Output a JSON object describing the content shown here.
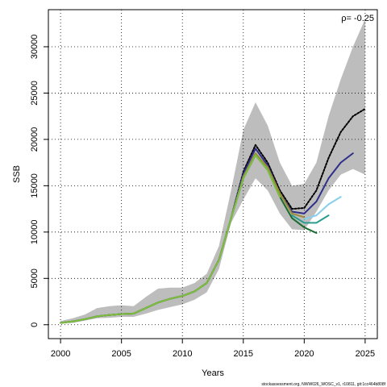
{
  "chart_data": {
    "type": "line",
    "title": "",
    "xlabel": "Years",
    "ylabel": "SSB",
    "xlim": [
      1999,
      2026
    ],
    "ylim": [
      -1500,
      34000
    ],
    "xticks": [
      2000,
      2005,
      2010,
      2015,
      2020,
      2025
    ],
    "yticks": [
      0,
      5000,
      10000,
      15000,
      20000,
      25000,
      30000
    ],
    "grid": true,
    "annotation": "ρ= -0.25",
    "footer": "stockassessment.org, NWW026_WOSC_v1, r10811, git:1cc464b808f",
    "band": {
      "x": [
        2000,
        2001,
        2002,
        2003,
        2004,
        2005,
        2006,
        2007,
        2008,
        2009,
        2010,
        2011,
        2012,
        2013,
        2014,
        2015,
        2016,
        2017,
        2018,
        2019,
        2020,
        2021,
        2022,
        2023,
        2024,
        2025
      ],
      "upper": [
        400,
        700,
        1100,
        1800,
        2000,
        2100,
        2000,
        3000,
        3900,
        4000,
        4000,
        4500,
        5500,
        8500,
        14500,
        21000,
        24000,
        21500,
        17500,
        15000,
        15200,
        17500,
        22500,
        26500,
        30000,
        33000
      ],
      "lower": [
        150,
        200,
        450,
        700,
        750,
        850,
        850,
        1200,
        1600,
        1900,
        2200,
        2700,
        3500,
        6000,
        11000,
        13500,
        15800,
        14500,
        12000,
        10300,
        10200,
        12200,
        14500,
        16200,
        16800,
        16200
      ]
    },
    "series": [
      {
        "color": "#000000",
        "dashed": true,
        "x": [
          2000,
          2001,
          2002,
          2003,
          2004,
          2005,
          2006,
          2007,
          2008,
          2009,
          2010,
          2011,
          2012,
          2013,
          2014,
          2015,
          2016,
          2017,
          2018,
          2019,
          2020,
          2021,
          2022,
          2023,
          2024,
          2025
        ],
        "values": [
          200,
          350,
          600,
          900,
          1050,
          1150,
          1200,
          1800,
          2400,
          2800,
          3100,
          3600,
          4500,
          7000,
          11500,
          16500,
          19400,
          17500,
          14500,
          12500,
          12600,
          14500,
          18000,
          20800,
          22500,
          23300
        ]
      },
      {
        "color": "#2e2e8a",
        "dashed": false,
        "x": [
          2000,
          2001,
          2002,
          2003,
          2004,
          2005,
          2006,
          2007,
          2008,
          2009,
          2010,
          2011,
          2012,
          2013,
          2014,
          2015,
          2016,
          2017,
          2018,
          2019,
          2020,
          2021,
          2022,
          2023,
          2024
        ],
        "values": [
          200,
          350,
          600,
          900,
          1050,
          1150,
          1200,
          1800,
          2400,
          2800,
          3100,
          3600,
          4500,
          7000,
          11500,
          16300,
          19000,
          17200,
          14200,
          12200,
          12000,
          13300,
          15800,
          17500,
          18500
        ]
      },
      {
        "color": "#9a8a3a",
        "dashed": false,
        "x": [
          2000,
          2001,
          2002,
          2003,
          2004,
          2005,
          2006,
          2007,
          2008,
          2009,
          2010,
          2011,
          2012,
          2013,
          2014,
          2015,
          2016,
          2017,
          2018,
          2019,
          2020
        ],
        "values": [
          200,
          350,
          600,
          900,
          1050,
          1150,
          1200,
          1800,
          2400,
          2800,
          3100,
          3600,
          4500,
          7000,
          11500,
          16000,
          18500,
          17000,
          14200,
          12000,
          11600
        ]
      },
      {
        "color": "#87ceeb",
        "dashed": false,
        "x": [
          2020,
          2021,
          2022,
          2023
        ],
        "values": [
          11400,
          11800,
          13000,
          13800
        ]
      },
      {
        "color": "#2a9d8f",
        "dashed": false,
        "x": [
          2019,
          2020,
          2021,
          2022
        ],
        "values": [
          11800,
          11000,
          11000,
          11800
        ]
      },
      {
        "color": "#1a6b2e",
        "dashed": false,
        "x": [
          2000,
          2001,
          2002,
          2003,
          2004,
          2005,
          2006,
          2007,
          2008,
          2009,
          2010,
          2011,
          2012,
          2013,
          2014,
          2015,
          2016,
          2017,
          2018,
          2019,
          2020,
          2021
        ],
        "values": [
          200,
          350,
          600,
          900,
          1050,
          1150,
          1200,
          1800,
          2400,
          2800,
          3100,
          3600,
          4500,
          7000,
          11500,
          15800,
          18300,
          16700,
          13800,
          11500,
          10500,
          9900
        ]
      },
      {
        "color": "#7fbf3f",
        "dashed": false,
        "x": [
          2000,
          2001,
          2002,
          2003,
          2004,
          2005,
          2006,
          2007,
          2008,
          2009,
          2010,
          2011,
          2012,
          2013,
          2014,
          2015,
          2016,
          2017,
          2018
        ],
        "values": [
          200,
          350,
          600,
          900,
          1050,
          1150,
          1200,
          1800,
          2400,
          2800,
          3100,
          3600,
          4500,
          7000,
          11500,
          15800,
          18300,
          16700,
          13800
        ]
      }
    ]
  }
}
